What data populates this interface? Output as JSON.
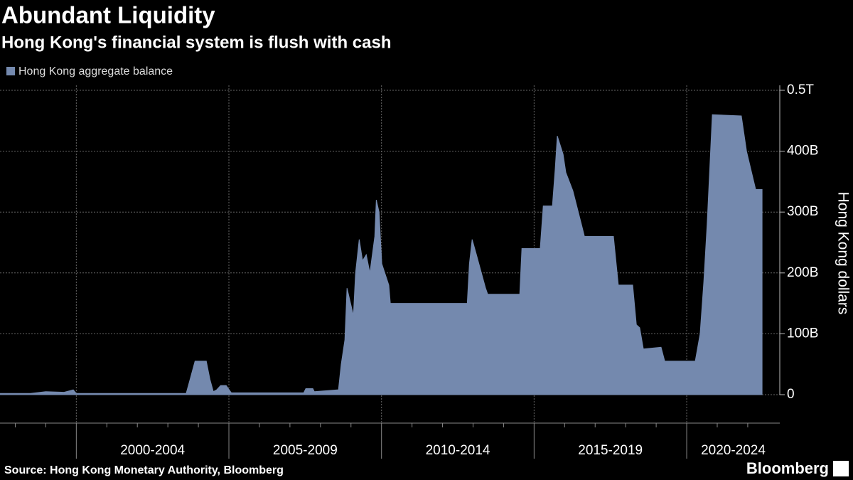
{
  "chart_data": {
    "type": "area",
    "title": "Abundant Liquidity",
    "subtitle": "Hong Kong's financial system is flush with cash",
    "y_label": "Hong Kong dollars",
    "source": "Source: Hong Kong Monetary Authority, Bloomberg",
    "brand": "Bloomberg",
    "x": [
      1997.5,
      1998.5,
      1999.0,
      1999.6,
      1999.9,
      2000.0,
      2003.6,
      2003.7,
      2003.89,
      2004.26,
      2004.38,
      2004.49,
      2004.6,
      2004.73,
      2004.91,
      2005.08,
      2007.45,
      2007.52,
      2007.75,
      2007.8,
      2008.59,
      2008.68,
      2008.8,
      2008.87,
      2009.08,
      2009.15,
      2009.27,
      2009.38,
      2009.5,
      2009.62,
      2009.78,
      2009.83,
      2009.92,
      2010.01,
      2010.24,
      2010.29,
      2012.81,
      2012.88,
      2012.97,
      2013.11,
      2013.41,
      2013.48,
      2014.53,
      2014.6,
      2015.2,
      2015.3,
      2015.6,
      2015.69,
      2015.76,
      2015.95,
      2016.04,
      2016.27,
      2016.55,
      2016.65,
      2017.6,
      2017.76,
      2018.23,
      2018.35,
      2018.46,
      2018.58,
      2019.16,
      2019.28,
      2020.28,
      2020.44,
      2020.56,
      2020.67,
      2020.84,
      2021.79,
      2021.96,
      2022.26,
      2022.47
    ],
    "series": [
      {
        "name": "Hong Kong aggregate balance",
        "color": "#7489ae",
        "values": [
          2,
          2,
          5,
          4,
          8,
          2,
          2,
          20,
          55,
          55,
          25,
          5,
          8,
          15,
          15,
          3,
          3,
          10,
          10,
          5,
          8,
          50,
          90,
          175,
          130,
          200,
          255,
          220,
          230,
          200,
          260,
          320,
          300,
          215,
          180,
          150,
          150,
          215,
          255,
          230,
          175,
          165,
          165,
          240,
          240,
          310,
          310,
          370,
          425,
          395,
          365,
          335,
          280,
          260,
          260,
          180,
          180,
          115,
          110,
          75,
          78,
          55,
          55,
          100,
          185,
          280,
          460,
          458,
          400,
          337,
          337
        ]
      }
    ],
    "xlim": [
      1997.5,
      2023.05
    ],
    "xticks": [
      2000,
      2005,
      2010,
      2015,
      2020
    ],
    "xminor_ticks": [
      1998,
      1999,
      2001,
      2002,
      2003,
      2004,
      2006,
      2007,
      2008,
      2009,
      2011,
      2012,
      2013,
      2014,
      2016,
      2017,
      2018,
      2019,
      2021,
      2022
    ],
    "xgroup_labels": [
      "2000-2004",
      "2005-2009",
      "2010-2014",
      "2015-2019",
      "2020-2024"
    ],
    "ylim": [
      0,
      500
    ],
    "yticks": [
      0,
      {
        "value": 100,
        "label": "100B"
      },
      {
        "value": 200,
        "label": "200B"
      },
      {
        "value": 300,
        "label": "300B"
      },
      {
        "value": 400,
        "label": "400B"
      },
      {
        "value": 500,
        "label": "0.5T"
      }
    ],
    "grid": true
  }
}
